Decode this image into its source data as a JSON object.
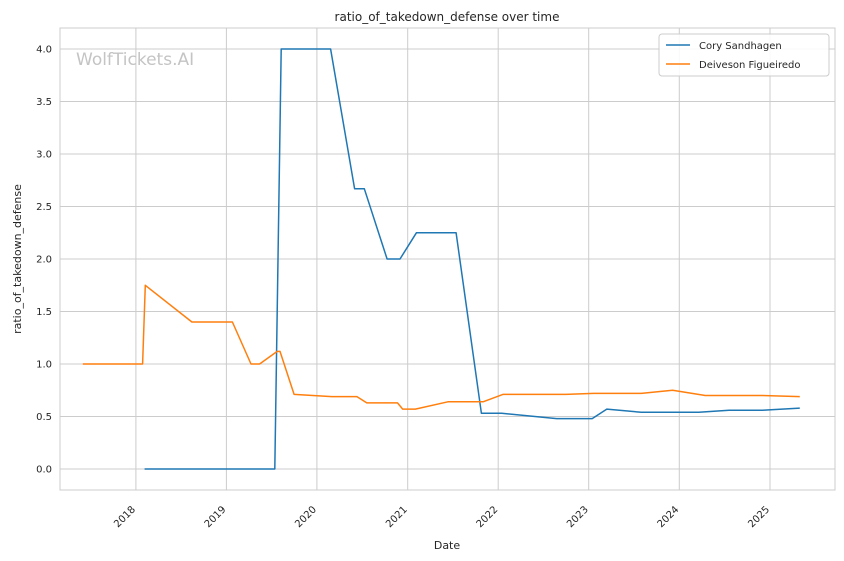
{
  "chart_data": {
    "type": "line",
    "title": "ratio_of_takedown_defense over time",
    "xlabel": "Date",
    "ylabel": "ratio_of_takedown_defense",
    "watermark": "WolfTickets.AI",
    "xlim": [
      "2017-03-01",
      "2025-09-20"
    ],
    "ylim": [
      -0.2,
      4.2
    ],
    "yticks": [
      0.0,
      0.5,
      1.0,
      1.5,
      2.0,
      2.5,
      3.0,
      3.5,
      4.0
    ],
    "ytick_labels": [
      "0.0",
      "0.5",
      "1.0",
      "1.5",
      "2.0",
      "2.5",
      "3.0",
      "3.5",
      "4.0"
    ],
    "xticks": [
      "2018-01-01",
      "2019-01-01",
      "2020-01-01",
      "2021-01-01",
      "2022-01-01",
      "2023-01-01",
      "2024-01-01",
      "2025-01-01"
    ],
    "xtick_labels": [
      "2018",
      "2019",
      "2020",
      "2021",
      "2022",
      "2023",
      "2024",
      "2025"
    ],
    "grid": true,
    "legend_position": "top-right",
    "series": [
      {
        "name": "Cory Sandhagen",
        "color": "#1f77b4",
        "points": [
          [
            "2018-02-05",
            0.0
          ],
          [
            "2019-07-15",
            0.0
          ],
          [
            "2019-08-10",
            4.0
          ],
          [
            "2020-02-25",
            4.0
          ],
          [
            "2020-06-01",
            2.67
          ],
          [
            "2020-07-10",
            2.67
          ],
          [
            "2020-10-10",
            2.0
          ],
          [
            "2020-12-01",
            2.0
          ],
          [
            "2021-02-05",
            2.25
          ],
          [
            "2021-07-15",
            2.25
          ],
          [
            "2021-10-25",
            0.53
          ],
          [
            "2022-01-15",
            0.53
          ],
          [
            "2022-08-25",
            0.48
          ],
          [
            "2023-01-15",
            0.48
          ],
          [
            "2023-03-15",
            0.57
          ],
          [
            "2023-08-01",
            0.54
          ],
          [
            "2024-03-20",
            0.54
          ],
          [
            "2024-07-20",
            0.56
          ],
          [
            "2024-12-01",
            0.56
          ],
          [
            "2025-05-01",
            0.58
          ]
        ]
      },
      {
        "name": "Deiveson Figueiredo",
        "color": "#ff7f0e",
        "points": [
          [
            "2017-06-01",
            1.0
          ],
          [
            "2018-01-28",
            1.0
          ],
          [
            "2018-02-08",
            1.75
          ],
          [
            "2018-08-15",
            1.4
          ],
          [
            "2019-01-25",
            1.4
          ],
          [
            "2019-04-10",
            1.0
          ],
          [
            "2019-05-15",
            1.0
          ],
          [
            "2019-07-25",
            1.12
          ],
          [
            "2019-08-05",
            1.12
          ],
          [
            "2019-10-01",
            0.71
          ],
          [
            "2020-03-01",
            0.69
          ],
          [
            "2020-06-10",
            0.69
          ],
          [
            "2020-07-20",
            0.63
          ],
          [
            "2020-11-21",
            0.63
          ],
          [
            "2020-12-12",
            0.57
          ],
          [
            "2021-02-01",
            0.57
          ],
          [
            "2021-06-12",
            0.64
          ],
          [
            "2021-11-01",
            0.64
          ],
          [
            "2022-01-20",
            0.71
          ],
          [
            "2022-10-01",
            0.71
          ],
          [
            "2023-01-21",
            0.72
          ],
          [
            "2023-08-01",
            0.72
          ],
          [
            "2023-12-05",
            0.75
          ],
          [
            "2024-04-15",
            0.7
          ],
          [
            "2024-12-01",
            0.7
          ],
          [
            "2025-05-01",
            0.69
          ]
        ]
      }
    ]
  }
}
